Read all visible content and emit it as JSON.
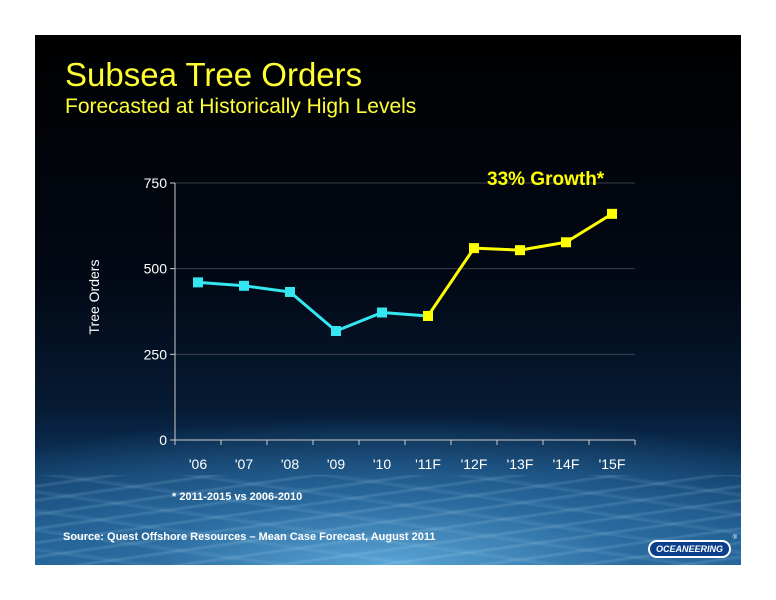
{
  "slide": {
    "title": "Subsea Tree Orders",
    "subtitle": "Forecasted at Historically High Levels",
    "footnote": "* 2011-2015 vs 2006-2010",
    "source": "Source:  Quest Offshore Resources – Mean Case Forecast, August 2011",
    "logo_text": "OCEANEERING",
    "logo_mark": "®"
  },
  "colors": {
    "actual": "#33e6f0",
    "forecast": "#ffff00",
    "title": "#ffff33",
    "axis": "#cccccc"
  },
  "chart_data": {
    "type": "line",
    "title": "",
    "xlabel": "",
    "ylabel": "Tree Orders",
    "categories": [
      "'06",
      "'07",
      "'08",
      "'09",
      "'10",
      "'11F",
      "'12F",
      "'13F",
      "'14F",
      "'15F"
    ],
    "ylim": [
      0,
      750
    ],
    "yticks": [
      0,
      250,
      500,
      750
    ],
    "grid": true,
    "series": [
      {
        "values": [
          460,
          450,
          432,
          318,
          372,
          362,
          null,
          null,
          null,
          null
        ]
      },
      {
        "values": [
          null,
          null,
          null,
          null,
          null,
          362,
          560,
          554,
          577,
          660
        ]
      }
    ],
    "annotation": "33% Growth*"
  }
}
